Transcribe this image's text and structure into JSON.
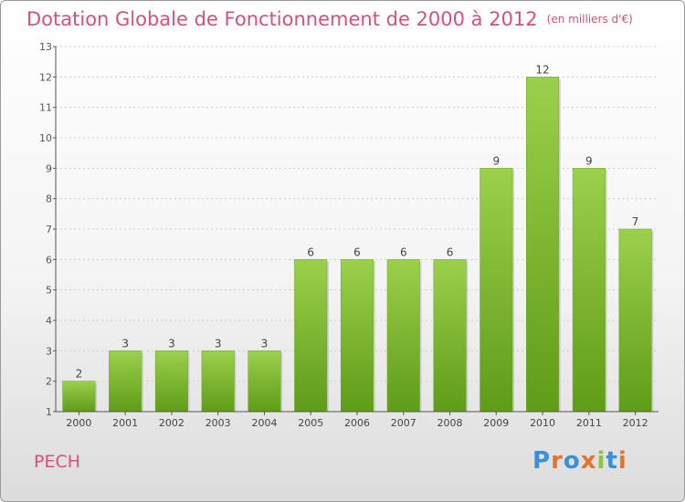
{
  "title": "Dotation Globale de Fonctionnement de 2000 à 2012",
  "subtitle": "(en milliers d'€)",
  "commune": "PECH",
  "logo": {
    "text": "Proxiti",
    "colors": [
      "#3b8fd6",
      "#e8722a",
      "#3b8fd6",
      "#e8722a",
      "#8cc63f",
      "#3b8fd6",
      "#e8722a"
    ]
  },
  "colors": {
    "title": "#d2527a",
    "bar_top": "#9bd04b",
    "bar_bottom": "#5f9c18",
    "axis": "#555555",
    "grid": "#cccccc"
  },
  "chart_data": {
    "type": "bar",
    "categories": [
      "2000",
      "2001",
      "2002",
      "2003",
      "2004",
      "2005",
      "2006",
      "2007",
      "2008",
      "2009",
      "2010",
      "2011",
      "2012"
    ],
    "values": [
      2,
      3,
      3,
      3,
      3,
      6,
      6,
      6,
      6,
      9,
      12,
      9,
      7
    ],
    "title": "Dotation Globale de Fonctionnement de 2000 à 2012",
    "subtitle": "(en milliers d'€)",
    "ylim": [
      1,
      13
    ],
    "yticks": [
      1,
      2,
      3,
      4,
      5,
      6,
      7,
      8,
      9,
      10,
      11,
      12,
      13
    ],
    "grid": true,
    "data_labels": true
  }
}
